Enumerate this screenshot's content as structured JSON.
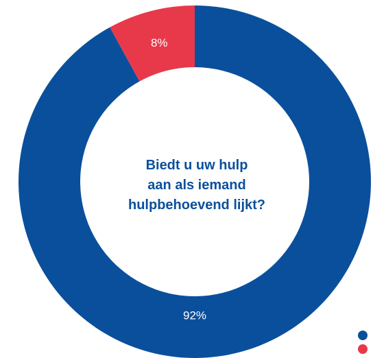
{
  "chart_data": {
    "type": "pie",
    "title_lines": [
      "Biedt u uw hulp",
      "aan als iemand",
      "hulpbehoevend lijkt?"
    ],
    "series": [
      {
        "value": 92,
        "label": "92%",
        "color": "#0a4f9c"
      },
      {
        "value": 8,
        "label": "8%",
        "color": "#e8394a"
      }
    ],
    "legend_position": "bottom-right"
  }
}
